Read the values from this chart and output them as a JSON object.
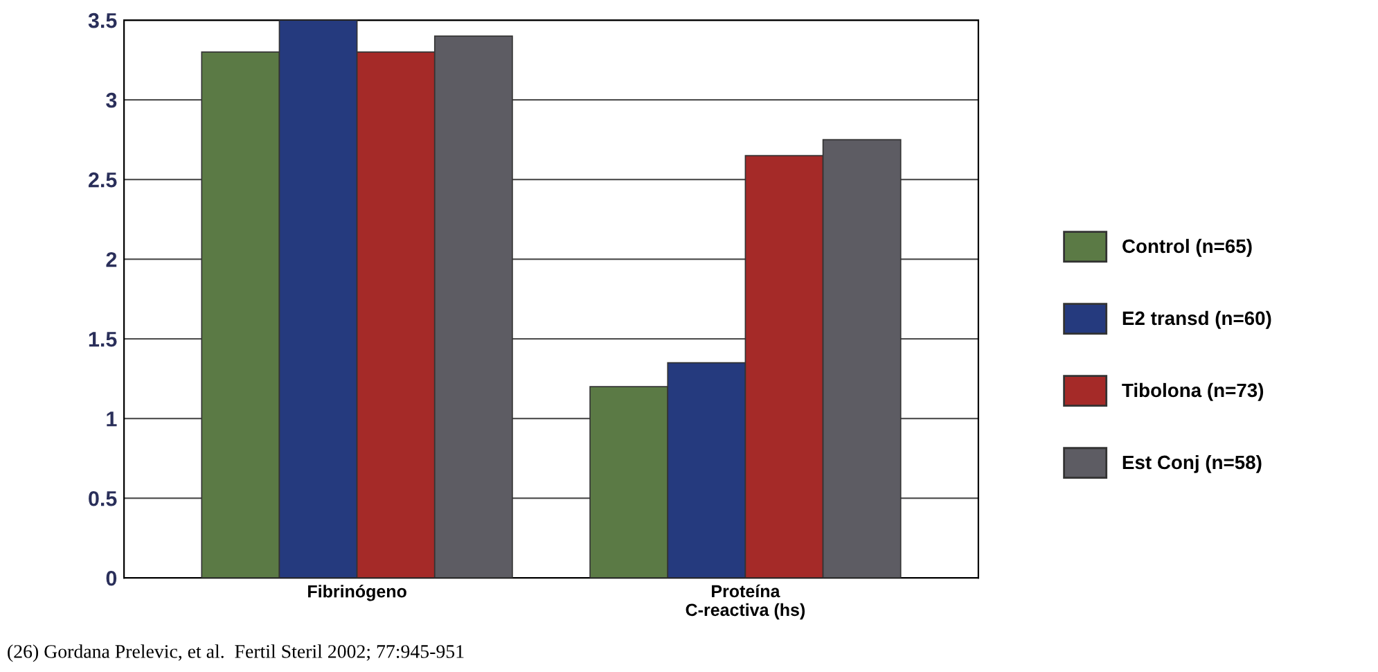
{
  "chart_data": {
    "type": "bar",
    "categories": [
      "Fibrinógeno",
      "Proteína\nC-reactiva (hs)"
    ],
    "series": [
      {
        "name": "Control (n=65)",
        "color": "#5b7a45",
        "values": [
          3.3,
          1.2
        ]
      },
      {
        "name": "E2 transd (n=60)",
        "color": "#253a7e",
        "values": [
          3.5,
          1.35
        ]
      },
      {
        "name": "Tibolona (n=73)",
        "color": "#a52a28",
        "values": [
          3.3,
          2.65
        ]
      },
      {
        "name": "Est Conj (n=58)",
        "color": "#5d5c63",
        "values": [
          3.4,
          2.75
        ]
      }
    ],
    "ylim": [
      0,
      3.5
    ],
    "yticks": [
      0,
      0.5,
      1,
      1.5,
      2,
      2.5,
      3,
      3.5
    ],
    "grid": "y",
    "legend": "right",
    "annotations": [
      "(26) Gordana Prelevic, et al.  Fertil Steril 2002; 77:945-951"
    ]
  }
}
